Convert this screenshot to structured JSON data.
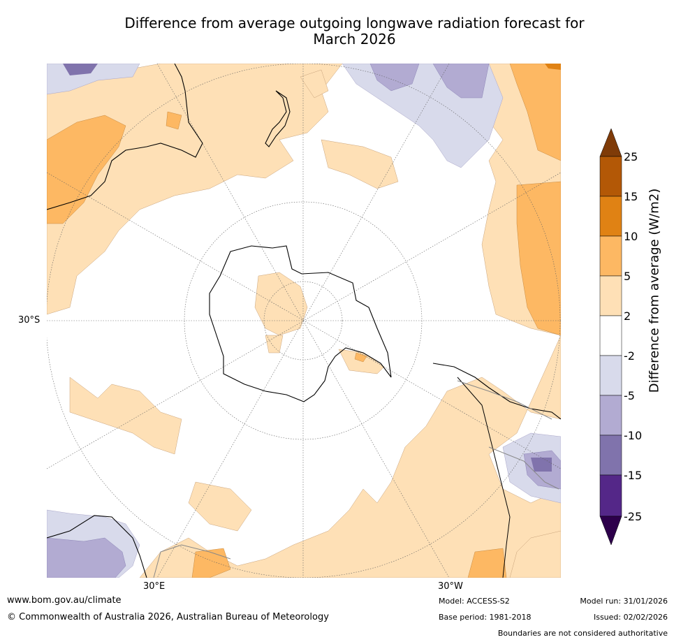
{
  "title": {
    "line1": "Difference from average outgoing longwave radiation forecast for",
    "line2": "March 2026"
  },
  "map": {
    "lat_label": "30°S",
    "lon_labels": {
      "east": "30°E",
      "west": "30°W"
    }
  },
  "colorbar": {
    "title": "Difference from average (W/m2)",
    "ticks": [
      "25",
      "15",
      "10",
      "5",
      "2",
      "-2",
      "-5",
      "-10",
      "-15",
      "-25"
    ],
    "colors": {
      "above_25": "#7f3b08",
      "15_25": "#b35806",
      "10_15": "#e08214",
      "5_10": "#fdb863",
      "2_5": "#fee0b6",
      "neutral": "#ffffff",
      "m2_m5": "#d8daeb",
      "m5_m10": "#b2abd2",
      "m10_m15": "#8073ac",
      "m15_m25": "#542788",
      "below_m25": "#2d004b"
    }
  },
  "footer": {
    "website": "www.bom.gov.au/climate",
    "copyright": "© Commonwealth of Australia 2026, Australian Bureau of Meteorology",
    "model": "Model: ACCESS-S2",
    "base_period": "Base period: 1981-2018",
    "model_run": "Model run: 31/01/2026",
    "issued": "Issued: 02/02/2026",
    "disclaimer": "Boundaries are not considered authoritative"
  }
}
